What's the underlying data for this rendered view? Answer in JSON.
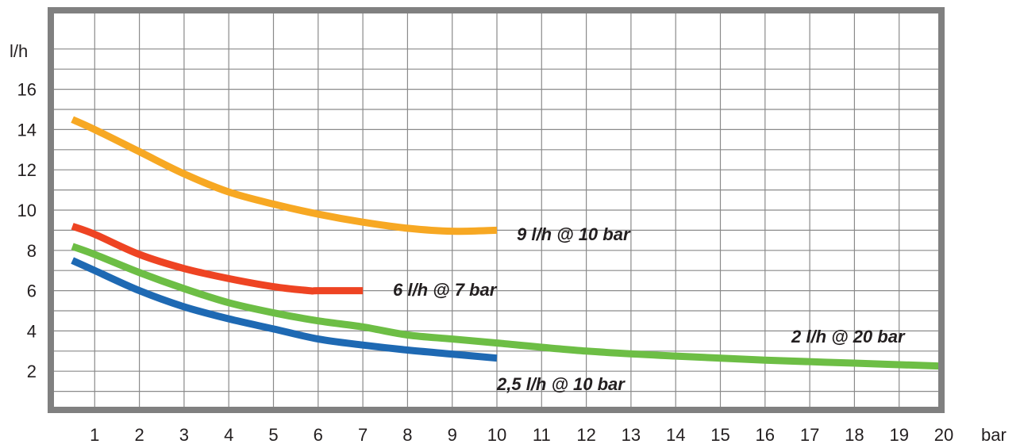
{
  "chart_data": {
    "type": "line",
    "xlabel": "bar",
    "ylabel": "l/h",
    "x_ticks": [
      "1",
      "2",
      "3",
      "4",
      "5",
      "6",
      "7",
      "8",
      "9",
      "10",
      "11",
      "12",
      "13",
      "14",
      "15",
      "16",
      "17",
      "18",
      "19",
      "20"
    ],
    "y_ticks": [
      "2",
      "4",
      "6",
      "8",
      "10",
      "12",
      "14",
      "16"
    ],
    "xlim": [
      0,
      20
    ],
    "ylim": [
      0,
      18
    ],
    "grid": true,
    "series": [
      {
        "name": "9 l/h @ 10 bar",
        "color": "#f7a823",
        "x": [
          0.5,
          1,
          2,
          3,
          4,
          5,
          6,
          7,
          8,
          9,
          10
        ],
        "y": [
          14.5,
          14.0,
          12.9,
          11.8,
          10.9,
          10.3,
          9.8,
          9.4,
          9.1,
          8.95,
          9.0
        ]
      },
      {
        "name": "6 l/h @ 7 bar",
        "color": "#ee4423",
        "x": [
          0.5,
          1,
          2,
          3,
          4,
          5,
          5.8,
          6,
          7
        ],
        "y": [
          9.2,
          8.8,
          7.8,
          7.1,
          6.6,
          6.2,
          6.0,
          6.0,
          6.0
        ]
      },
      {
        "name": "2 l/h @ 20 bar",
        "color": "#6dbe45",
        "x": [
          0.5,
          1,
          2,
          3,
          4,
          5,
          6,
          7,
          8,
          9,
          10,
          12,
          14,
          16,
          18,
          20
        ],
        "y": [
          8.2,
          7.8,
          6.9,
          6.1,
          5.4,
          4.9,
          4.5,
          4.2,
          3.8,
          3.6,
          3.4,
          3.0,
          2.75,
          2.55,
          2.4,
          2.25
        ]
      },
      {
        "name": "2,5 l/h @ 10 bar",
        "color": "#1e69b3",
        "x": [
          0.5,
          1,
          2,
          3,
          4,
          5,
          6,
          7,
          8,
          9,
          10
        ],
        "y": [
          7.5,
          7.0,
          6.0,
          5.2,
          4.6,
          4.1,
          3.6,
          3.3,
          3.05,
          2.85,
          2.65
        ]
      }
    ]
  }
}
